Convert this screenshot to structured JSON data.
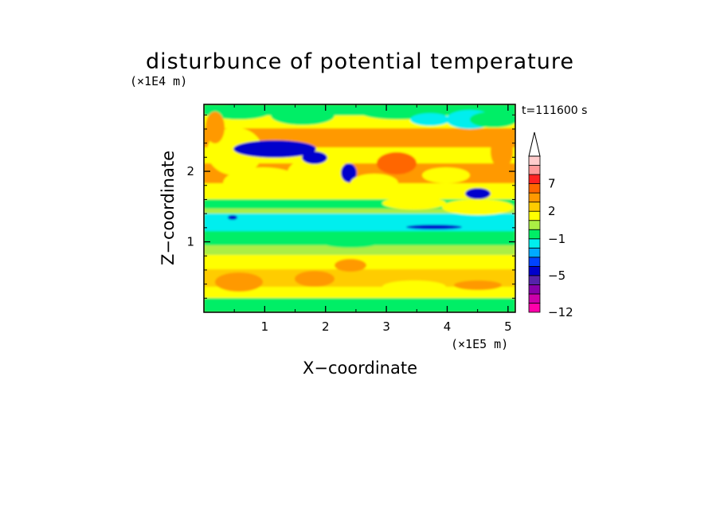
{
  "chart_data": {
    "type": "heatmap",
    "title": "disturbunce of potential temperature",
    "xlabel": "X−coordinate",
    "ylabel": "Z−coordinate",
    "x_scale_label": "(×1E5 m)",
    "y_scale_label": "(×1E4 m)",
    "time_label": "t=111600 s",
    "xlim": [
      0,
      5.12
    ],
    "ylim": [
      0,
      2.95
    ],
    "x_ticks": [
      1,
      2,
      3,
      4,
      5
    ],
    "x_tick_labels": [
      "1",
      "2",
      "3",
      "4",
      "5"
    ],
    "y_ticks": [
      1,
      2
    ],
    "y_tick_labels": [
      "1",
      "2"
    ],
    "colorbar": {
      "levels": [
        -12,
        -10,
        -8,
        -6,
        -5,
        -4,
        -3,
        -2,
        -1,
        0,
        1,
        2,
        3,
        5,
        7,
        9,
        11
      ],
      "tick_labels": [
        "−12",
        "−5",
        "−1",
        "2",
        "7"
      ],
      "tick_values": [
        -12,
        -5,
        -1,
        2,
        7
      ],
      "colors": [
        "#ff00aa",
        "#cc00aa",
        "#8800aa",
        "#5522aa",
        "#0000cc",
        "#0044ff",
        "#00aaff",
        "#00eeee",
        "#00ee66",
        "#aaee44",
        "#ffff00",
        "#ffcc00",
        "#ff9900",
        "#ff6600",
        "#ff2222",
        "#ff9999",
        "#ffcccc"
      ],
      "extend": "max"
    },
    "field_colors": {
      "background": "#ffcc00",
      "warm": "#ff9900",
      "green": "#00ee66",
      "cyan": "#00eeee",
      "yellow": "#ffff00",
      "lightgreen": "#aaee44",
      "blue": "#0000cc",
      "midblue": "#0044ff",
      "red": "#ff6600"
    }
  }
}
